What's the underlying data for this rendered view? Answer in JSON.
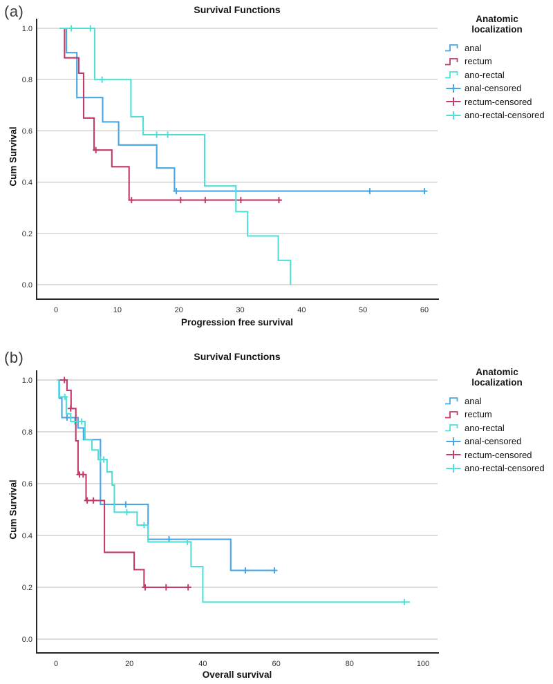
{
  "figure": {
    "panel_a_label": "(a)",
    "panel_b_label": "(b)"
  },
  "colors": {
    "anal": "#47A6E4",
    "rectum": "#C13A6B",
    "ano_rectal": "#4FDFD8",
    "grid": "#c7c7c7",
    "axis": "#262626",
    "tick_text": "#2e2e2e"
  },
  "legend": {
    "title_line1": "Anatomic",
    "title_line2": "localization",
    "items": [
      {
        "label": "anal",
        "symbol": "step",
        "color": "anal"
      },
      {
        "label": "rectum",
        "symbol": "step",
        "color": "rectum"
      },
      {
        "label": "ano-rectal",
        "symbol": "step",
        "color": "ano_rectal"
      },
      {
        "label": "anal-censored",
        "symbol": "plus",
        "color": "anal"
      },
      {
        "label": "rectum-censored",
        "symbol": "plus",
        "color": "rectum"
      },
      {
        "label": "ano-rectal-censored",
        "symbol": "plus",
        "color": "ano_rectal"
      }
    ]
  },
  "chart_data": [
    {
      "type": "line",
      "subtype": "kaplan-meier-step",
      "panel": "(a)",
      "title": "Survival Functions",
      "xlabel": "Progression free survival",
      "ylabel": "Cum Survival",
      "xlim": [
        0,
        60
      ],
      "ylim": [
        0.0,
        1.0
      ],
      "x_ticks": [
        0,
        10,
        20,
        30,
        40,
        50,
        60
      ],
      "y_ticks": [
        1.0,
        0.8,
        0.6,
        0.4,
        0.2,
        0.0
      ],
      "grid": true,
      "legend_position": "right",
      "series": [
        {
          "name": "anal",
          "color": "anal",
          "steps": [
            [
              0.6,
              1.0
            ],
            [
              1.7,
              1.0
            ],
            [
              1.7,
              0.905
            ],
            [
              3.4,
              0.905
            ],
            [
              3.4,
              0.73
            ],
            [
              7.6,
              0.73
            ],
            [
              7.6,
              0.635
            ],
            [
              10.2,
              0.635
            ],
            [
              10.2,
              0.545
            ],
            [
              16.4,
              0.545
            ],
            [
              16.4,
              0.455
            ],
            [
              19.3,
              0.455
            ],
            [
              19.3,
              0.365
            ],
            [
              60.3,
              0.365
            ]
          ],
          "censored": [
            [
              19.6,
              0.365
            ],
            [
              51.1,
              0.365
            ],
            [
              60.0,
              0.365
            ]
          ]
        },
        {
          "name": "rectum",
          "color": "rectum",
          "steps": [
            [
              0.6,
              1.0
            ],
            [
              1.4,
              1.0
            ],
            [
              1.4,
              0.885
            ],
            [
              3.7,
              0.885
            ],
            [
              3.7,
              0.825
            ],
            [
              4.5,
              0.825
            ],
            [
              4.5,
              0.65
            ],
            [
              6.2,
              0.65
            ],
            [
              6.2,
              0.525
            ],
            [
              9.1,
              0.525
            ],
            [
              9.1,
              0.46
            ],
            [
              11.9,
              0.46
            ],
            [
              11.9,
              0.33
            ],
            [
              36.6,
              0.33
            ]
          ],
          "censored": [
            [
              6.5,
              0.525
            ],
            [
              12.3,
              0.33
            ],
            [
              20.3,
              0.33
            ],
            [
              24.3,
              0.33
            ],
            [
              30.1,
              0.33
            ],
            [
              36.3,
              0.33
            ]
          ]
        },
        {
          "name": "ano-rectal",
          "color": "ano_rectal",
          "steps": [
            [
              0.6,
              1.0
            ],
            [
              6.3,
              1.0
            ],
            [
              6.3,
              0.8
            ],
            [
              12.2,
              0.8
            ],
            [
              12.2,
              0.655
            ],
            [
              14.2,
              0.655
            ],
            [
              14.2,
              0.585
            ],
            [
              24.2,
              0.585
            ],
            [
              24.2,
              0.385
            ],
            [
              29.3,
              0.385
            ],
            [
              29.3,
              0.285
            ],
            [
              31.2,
              0.285
            ],
            [
              31.2,
              0.19
            ],
            [
              36.2,
              0.19
            ],
            [
              36.2,
              0.095
            ],
            [
              38.2,
              0.095
            ],
            [
              38.2,
              0.0
            ]
          ],
          "censored": [
            [
              2.5,
              1.0
            ],
            [
              5.6,
              1.0
            ],
            [
              7.5,
              0.8
            ],
            [
              16.4,
              0.585
            ],
            [
              18.2,
              0.585
            ]
          ]
        }
      ]
    },
    {
      "type": "line",
      "subtype": "kaplan-meier-step",
      "panel": "(b)",
      "title": "Survival Functions",
      "xlabel": "Overall survival",
      "ylabel": "Cum Survival",
      "xlim": [
        0,
        100
      ],
      "ylim": [
        0.0,
        1.0
      ],
      "x_ticks": [
        0,
        20,
        40,
        60,
        80,
        100
      ],
      "y_ticks": [
        1.0,
        0.8,
        0.6,
        0.4,
        0.2,
        0.0
      ],
      "grid": true,
      "legend_position": "right",
      "series": [
        {
          "name": "anal",
          "color": "anal",
          "steps": [
            [
              0.4,
              1.0
            ],
            [
              0.9,
              1.0
            ],
            [
              0.9,
              0.93
            ],
            [
              1.6,
              0.93
            ],
            [
              1.6,
              0.855
            ],
            [
              6.0,
              0.855
            ],
            [
              6.0,
              0.815
            ],
            [
              7.5,
              0.815
            ],
            [
              7.5,
              0.77
            ],
            [
              12.1,
              0.77
            ],
            [
              12.1,
              0.52
            ],
            [
              25.1,
              0.52
            ],
            [
              25.1,
              0.385
            ],
            [
              47.6,
              0.385
            ],
            [
              47.6,
              0.265
            ],
            [
              59.8,
              0.265
            ]
          ],
          "censored": [
            [
              3.0,
              0.855
            ],
            [
              15.9,
              0.52
            ],
            [
              19.0,
              0.52
            ],
            [
              30.8,
              0.385
            ],
            [
              51.6,
              0.265
            ],
            [
              59.5,
              0.265
            ]
          ]
        },
        {
          "name": "rectum",
          "color": "rectum",
          "steps": [
            [
              0.4,
              1.0
            ],
            [
              3.0,
              1.0
            ],
            [
              3.0,
              0.96
            ],
            [
              4.1,
              0.96
            ],
            [
              4.1,
              0.89
            ],
            [
              5.4,
              0.89
            ],
            [
              5.4,
              0.765
            ],
            [
              6.0,
              0.765
            ],
            [
              6.0,
              0.635
            ],
            [
              8.2,
              0.635
            ],
            [
              8.2,
              0.535
            ],
            [
              13.2,
              0.535
            ],
            [
              13.2,
              0.335
            ],
            [
              21.3,
              0.335
            ],
            [
              21.3,
              0.268
            ],
            [
              24.0,
              0.268
            ],
            [
              24.0,
              0.2
            ],
            [
              36.5,
              0.2
            ]
          ],
          "censored": [
            [
              2.3,
              1.0
            ],
            [
              4.0,
              0.89
            ],
            [
              6.4,
              0.635
            ],
            [
              7.4,
              0.635
            ],
            [
              8.5,
              0.535
            ],
            [
              10.2,
              0.535
            ],
            [
              24.3,
              0.2
            ],
            [
              30.0,
              0.2
            ],
            [
              36.0,
              0.2
            ]
          ]
        },
        {
          "name": "ano-rectal",
          "color": "ano_rectal",
          "steps": [
            [
              0.4,
              1.0
            ],
            [
              0.8,
              1.0
            ],
            [
              0.8,
              0.935
            ],
            [
              2.8,
              0.935
            ],
            [
              2.8,
              0.87
            ],
            [
              4.0,
              0.87
            ],
            [
              4.0,
              0.84
            ],
            [
              7.9,
              0.84
            ],
            [
              7.9,
              0.77
            ],
            [
              9.8,
              0.77
            ],
            [
              9.8,
              0.73
            ],
            [
              11.5,
              0.73
            ],
            [
              11.5,
              0.693
            ],
            [
              13.9,
              0.693
            ],
            [
              13.9,
              0.645
            ],
            [
              15.3,
              0.645
            ],
            [
              15.3,
              0.595
            ],
            [
              15.9,
              0.595
            ],
            [
              15.9,
              0.49
            ],
            [
              22.1,
              0.49
            ],
            [
              22.1,
              0.44
            ],
            [
              25.1,
              0.44
            ],
            [
              25.1,
              0.375
            ],
            [
              36.8,
              0.375
            ],
            [
              36.8,
              0.28
            ],
            [
              40.0,
              0.28
            ],
            [
              40.0,
              0.143
            ],
            [
              96.4,
              0.143
            ]
          ],
          "censored": [
            [
              2.4,
              0.935
            ],
            [
              5.1,
              0.84
            ],
            [
              7.0,
              0.84
            ],
            [
              12.1,
              0.693
            ],
            [
              13.0,
              0.693
            ],
            [
              19.3,
              0.49
            ],
            [
              24.0,
              0.44
            ],
            [
              35.8,
              0.375
            ],
            [
              94.9,
              0.143
            ]
          ]
        }
      ]
    }
  ]
}
